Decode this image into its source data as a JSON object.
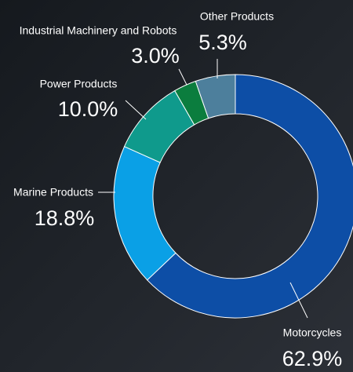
{
  "chart_data": {
    "type": "donut",
    "categories": [
      "Motorcycles",
      "Marine Products",
      "Power Products",
      "Industrial Machinery and Robots",
      "Other Products"
    ],
    "values": [
      62.9,
      18.8,
      10.0,
      3.0,
      5.3
    ],
    "value_labels": [
      "62.9%",
      "18.8%",
      "10.0%",
      "3.0%",
      "5.3%"
    ],
    "colors": [
      "#0d4ea6",
      "#0aa0e6",
      "#0f9a8c",
      "#0b7d3e",
      "#4d7f9c"
    ]
  }
}
